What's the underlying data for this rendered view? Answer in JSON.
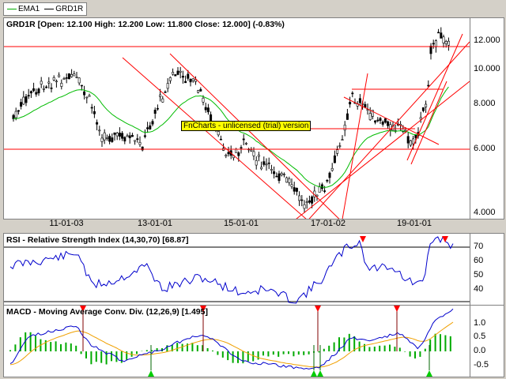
{
  "legend": {
    "items": [
      {
        "label": "EMA1",
        "color": "#00aa00"
      },
      {
        "label": "GRD1R",
        "color": "#000000"
      }
    ]
  },
  "price_panel": {
    "title": "GRD1R [Open: 12.100  High: 12.200  Low: 11.800  Close: 12.000] (-0.83%)",
    "y_ticks": [
      "12.000",
      "10.000",
      "8.000",
      "6.000",
      "4.000"
    ],
    "x_ticks": [
      "11-01-03",
      "13-01-01",
      "15-01-01",
      "17-01-02",
      "19-01-01"
    ],
    "watermark": "FnCharts - unlicensed (trial) version"
  },
  "rsi_panel": {
    "title": "RSI - Relative Strength Index (14,30,70) [68.87]",
    "y_ticks": [
      "70",
      "60",
      "50",
      "40"
    ]
  },
  "macd_panel": {
    "title": "MACD - Moving Average Conv. Div. (12,26,9) [1.495]",
    "y_ticks": [
      "1.0",
      "0.5",
      "0.0",
      "-0.5"
    ]
  },
  "colors": {
    "ema": "#00bb00",
    "rsi": "#0000cc",
    "macd": "#0000cc",
    "signal": "#f0a000",
    "histogram": "#00aa00",
    "trendline": "#ff0000",
    "arrow_down": "#ff0000",
    "arrow_up": "#00cc00"
  }
}
